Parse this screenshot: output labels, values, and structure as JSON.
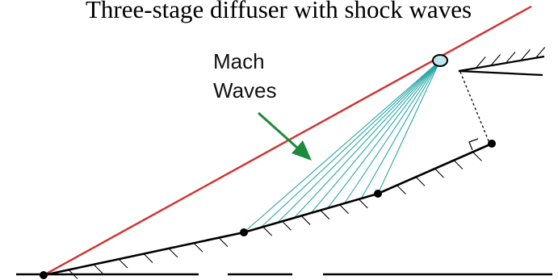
{
  "title": "Three-stage diffuser with shock waves",
  "label_line1": "Mach",
  "label_line2": "Waves",
  "colors": {
    "shock": "#d32f2f",
    "mach_waves": "#2aa6a6",
    "arrow": "#1e8a3c",
    "wall": "#000000",
    "focus_point": "#bfe6ee"
  },
  "mach_wave_count": 9
}
